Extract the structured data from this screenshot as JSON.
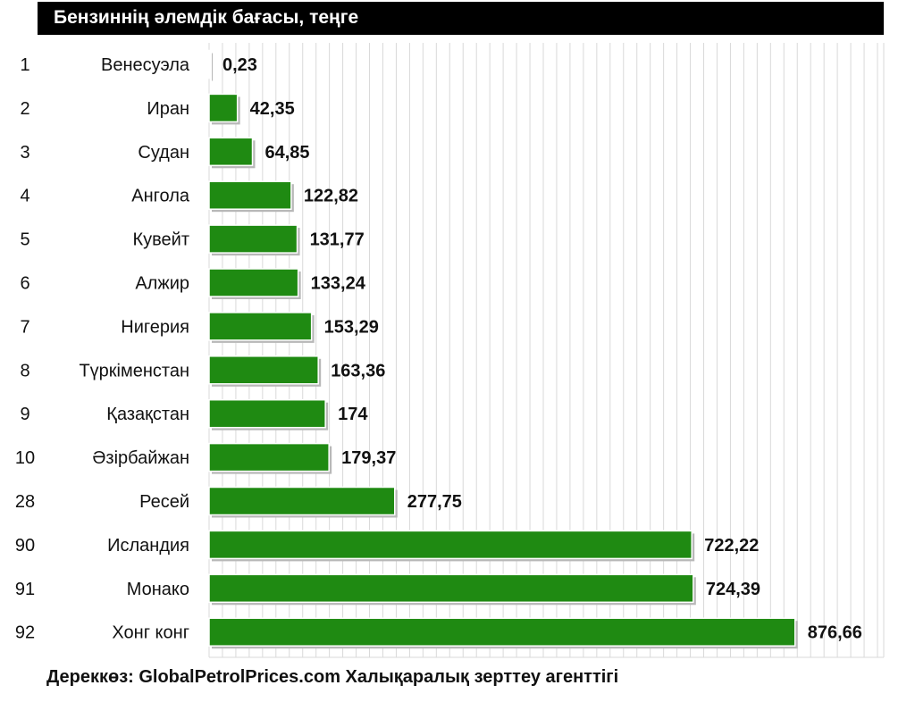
{
  "chart_data": {
    "type": "bar",
    "orientation": "horizontal",
    "title": "Бензиннің әлемдік бағасы, теңге",
    "ranks": [
      "1",
      "2",
      "3",
      "4",
      "5",
      "6",
      "7",
      "8",
      "9",
      "10",
      "28",
      "90",
      "91",
      "92"
    ],
    "categories": [
      "Венесуэла",
      "Иран",
      "Судан",
      "Ангола",
      "Кувейт",
      "Алжир",
      "Нигерия",
      "Түркіменстан",
      "Қазақстан",
      "Әзірбайжан",
      "Ресей",
      "Исландия",
      "Монако",
      "Хонг конг"
    ],
    "values": [
      0.23,
      42.35,
      64.85,
      122.82,
      131.77,
      133.24,
      153.29,
      163.36,
      174,
      179.37,
      277.75,
      722.22,
      724.39,
      876.66
    ],
    "value_labels": [
      "0,23",
      "42,35",
      "64,85",
      "122,82",
      "131,77",
      "133,24",
      "153,29",
      "163,36",
      "174",
      "179,37",
      "277,75",
      "722,22",
      "724,39",
      "876,66"
    ],
    "xlim": [
      0,
      1000
    ],
    "grid": "vertical",
    "bar_color": "#1f8a12"
  },
  "source": "Дереккөз: GlobalPetrolPrices.com Халықаралық зерттеу агенттігі"
}
